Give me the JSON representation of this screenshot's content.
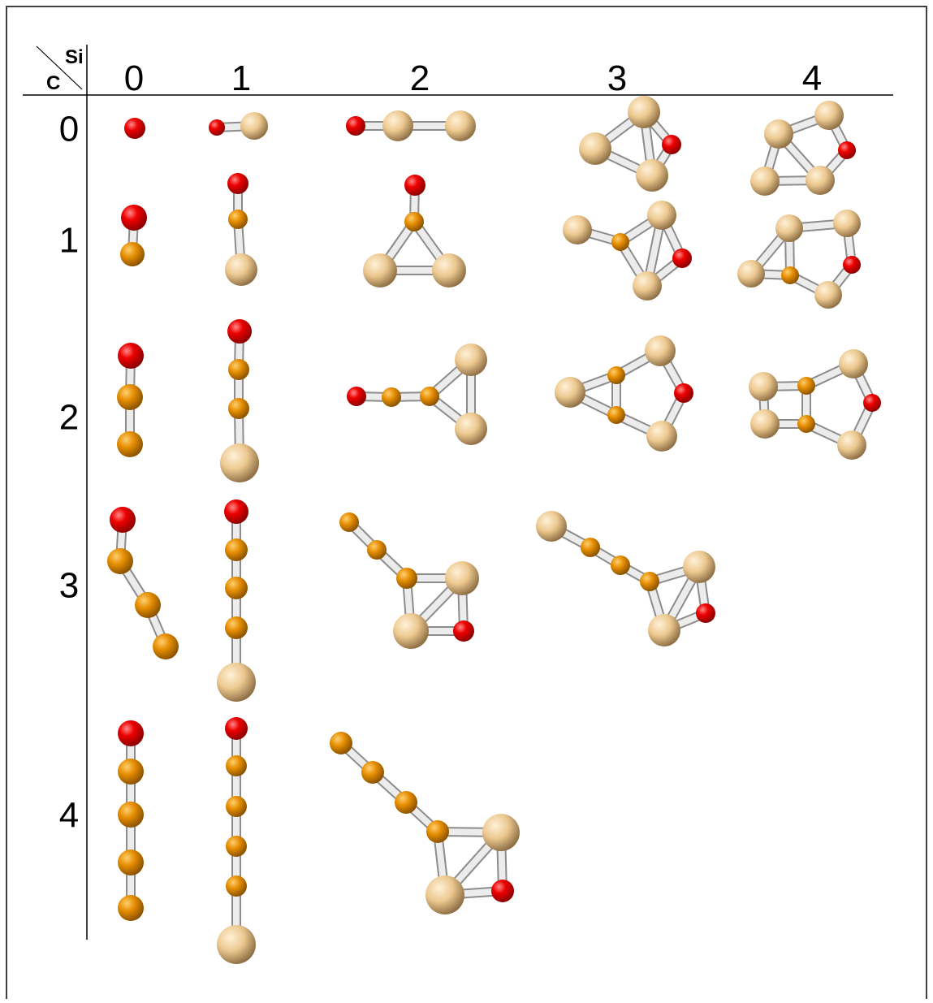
{
  "corner": {
    "top": "Si",
    "bottom": "C"
  },
  "columns": [
    "0",
    "1",
    "2",
    "3",
    "4"
  ],
  "rows": [
    "0",
    "1",
    "2",
    "3",
    "4"
  ]
}
